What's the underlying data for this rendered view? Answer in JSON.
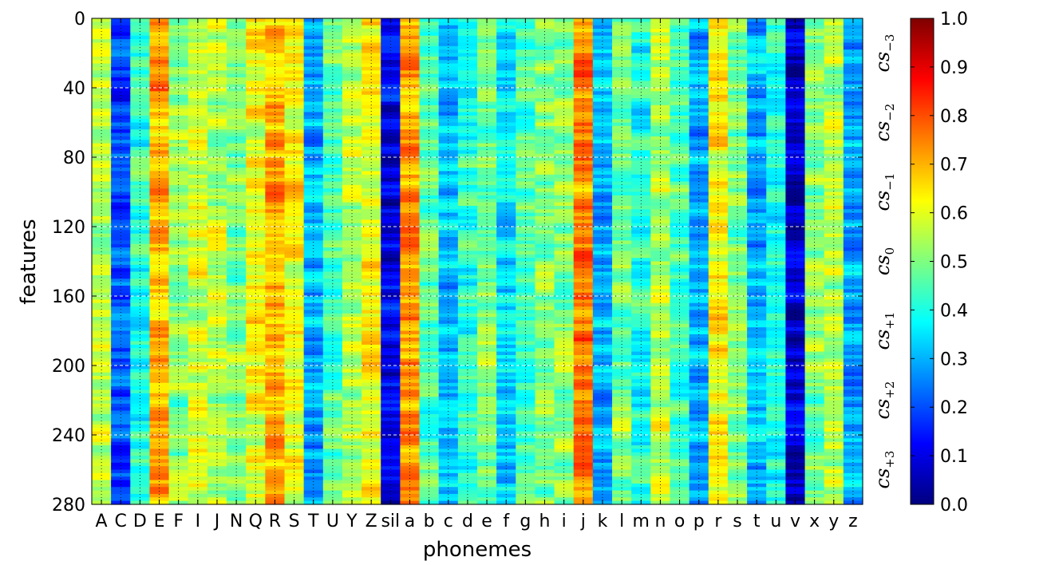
{
  "chart_data": {
    "type": "heatmap",
    "xlabel": "phonemes",
    "ylabel": "features",
    "x_categories": [
      "A",
      "C",
      "D",
      "E",
      "F",
      "I",
      "J",
      "N",
      "Q",
      "R",
      "S",
      "T",
      "U",
      "Y",
      "Z",
      "sil",
      "a",
      "b",
      "c",
      "d",
      "e",
      "f",
      "g",
      "h",
      "i",
      "j",
      "k",
      "l",
      "m",
      "n",
      "o",
      "p",
      "r",
      "s",
      "t",
      "u",
      "v",
      "x",
      "y",
      "z"
    ],
    "x_tick_labels": [
      "A",
      "C",
      "D",
      "E",
      "F",
      "I",
      "J",
      "N",
      "Q",
      "R",
      "S",
      "T",
      "U",
      "Y",
      "Z",
      "sil",
      "a",
      "b",
      "c",
      "d",
      "e",
      "f",
      "g",
      "h",
      "i",
      "j",
      "k",
      "l",
      "m",
      "n",
      "o",
      "p",
      "r",
      "s",
      "t",
      "u",
      "v",
      "x",
      "y",
      "z"
    ],
    "y_range": [
      0,
      280
    ],
    "y_ticks": [
      0,
      40,
      80,
      120,
      160,
      200,
      240,
      280
    ],
    "y_tick_labels": [
      "0",
      "40",
      "80",
      "120",
      "160",
      "200",
      "240",
      "280"
    ],
    "colormap": "jet",
    "colorbar": {
      "range": [
        0.0,
        1.0
      ],
      "ticks": [
        "0.0",
        "0.1",
        "0.2",
        "0.3",
        "0.4",
        "0.5",
        "0.6",
        "0.7",
        "0.8",
        "0.9",
        "1.0"
      ]
    },
    "grid": true,
    "section_boundaries": [
      40,
      80,
      120,
      160,
      200,
      240
    ],
    "sections": [
      {
        "base": "cs",
        "sub": "−3",
        "from": 0,
        "to": 40
      },
      {
        "base": "cs",
        "sub": "−2",
        "from": 40,
        "to": 80
      },
      {
        "base": "cs",
        "sub": "−1",
        "from": 80,
        "to": 120
      },
      {
        "base": "cs",
        "sub": "0",
        "from": 120,
        "to": 160
      },
      {
        "base": "cs",
        "sub": "+1",
        "from": 160,
        "to": 200
      },
      {
        "base": "cs",
        "sub": "+2",
        "from": 200,
        "to": 240
      },
      {
        "base": "cs",
        "sub": "+3",
        "from": 240,
        "to": 280
      }
    ],
    "column_mean_values": [
      0.55,
      0.2,
      0.42,
      0.7,
      0.5,
      0.6,
      0.55,
      0.5,
      0.62,
      0.7,
      0.62,
      0.3,
      0.45,
      0.55,
      0.62,
      0.1,
      0.72,
      0.45,
      0.3,
      0.4,
      0.5,
      0.35,
      0.45,
      0.5,
      0.5,
      0.75,
      0.3,
      0.5,
      0.4,
      0.55,
      0.45,
      0.3,
      0.62,
      0.5,
      0.3,
      0.4,
      0.08,
      0.5,
      0.55,
      0.3
    ]
  },
  "colors": {
    "jet": [
      "#00007f",
      "#0000ff",
      "#007fff",
      "#00ffff",
      "#7fff7f",
      "#ffff00",
      "#ff7f00",
      "#ff0000",
      "#7f0000"
    ]
  }
}
